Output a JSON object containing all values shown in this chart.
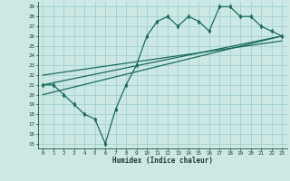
{
  "xlabel": "Humidex (Indice chaleur)",
  "bg_color": "#cce8e4",
  "grid_color": "#99cccc",
  "line_color": "#1a6b5a",
  "xlim": [
    -0.5,
    23.5
  ],
  "ylim": [
    14.5,
    29.5
  ],
  "xticks": [
    0,
    1,
    2,
    3,
    4,
    5,
    6,
    7,
    8,
    9,
    10,
    11,
    12,
    13,
    14,
    15,
    16,
    17,
    18,
    19,
    20,
    21,
    22,
    23
  ],
  "yticks": [
    15,
    16,
    17,
    18,
    19,
    20,
    21,
    22,
    23,
    24,
    25,
    26,
    27,
    28,
    29
  ],
  "data_x": [
    0,
    1,
    2,
    3,
    4,
    5,
    6,
    7,
    8,
    9,
    10,
    11,
    12,
    13,
    14,
    15,
    16,
    17,
    18,
    19,
    20,
    21,
    22,
    23
  ],
  "data_y": [
    21,
    21,
    20,
    19,
    18,
    17.5,
    15,
    18.5,
    21,
    23,
    26,
    27.5,
    28,
    27,
    28,
    27.5,
    26.5,
    29,
    29,
    28,
    28,
    27,
    26.5,
    26
  ],
  "line1_x": [
    0,
    23
  ],
  "line1_y": [
    21.0,
    26.0
  ],
  "line2_x": [
    0,
    23
  ],
  "line2_y": [
    22.0,
    25.5
  ],
  "line3_x": [
    0,
    23
  ],
  "line3_y": [
    20.0,
    26.0
  ]
}
